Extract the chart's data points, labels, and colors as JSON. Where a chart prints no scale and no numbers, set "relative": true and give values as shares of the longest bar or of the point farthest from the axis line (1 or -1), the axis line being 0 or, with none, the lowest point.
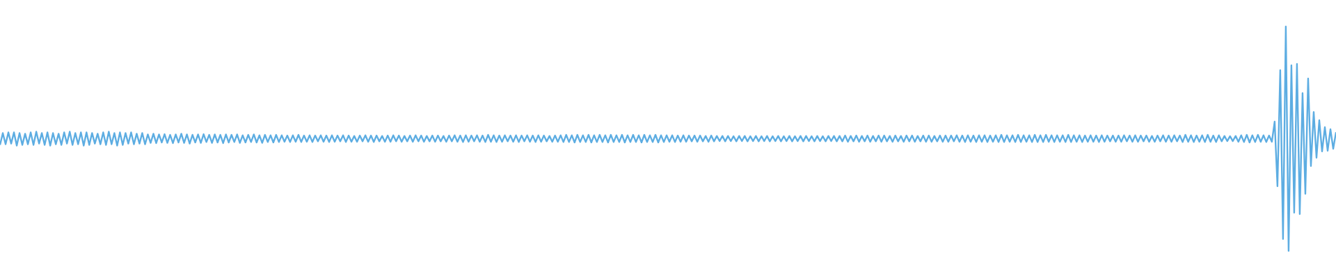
{
  "chart_data": {
    "type": "line",
    "relative": true,
    "color": "#5dade2",
    "categories": [
      null,
      null,
      null,
      null,
      null,
      null,
      null,
      null,
      null,
      null,
      null,
      null,
      null,
      null,
      null,
      null,
      null,
      null,
      null,
      null,
      null,
      null,
      null,
      null,
      null,
      null,
      null,
      null,
      null,
      null,
      null,
      null,
      null,
      null,
      null,
      null,
      null,
      null,
      null,
      null,
      null,
      null,
      null,
      null,
      null,
      null,
      null,
      null,
      null,
      null,
      null,
      null,
      null,
      null,
      null,
      null,
      null,
      null,
      null,
      null,
      null,
      null,
      null,
      null,
      null,
      null,
      null,
      null,
      null,
      null,
      null,
      null,
      null,
      null,
      null,
      null,
      null,
      null,
      null,
      null,
      null,
      null,
      null,
      null,
      null,
      null,
      null,
      null,
      null,
      null,
      null,
      null,
      null,
      null,
      null,
      null,
      null,
      null,
      null,
      null,
      null,
      null,
      null,
      null,
      null,
      null,
      null,
      null,
      null,
      null,
      null,
      null,
      null,
      null,
      null,
      null,
      null,
      null,
      null,
      null,
      null,
      null,
      null,
      null,
      null,
      null,
      null,
      null,
      null,
      null,
      null,
      null,
      null,
      null,
      null,
      null,
      null,
      null,
      null,
      null,
      null,
      null,
      null,
      null,
      null,
      null,
      null,
      null,
      null,
      null,
      null,
      null,
      null,
      null,
      null,
      null,
      null,
      null,
      null,
      null,
      null,
      null,
      null,
      null,
      null,
      null,
      null,
      null,
      null,
      null,
      null,
      null,
      null,
      null,
      null,
      null,
      null,
      null,
      null,
      null,
      null,
      null,
      null,
      null,
      null,
      null,
      null,
      null,
      null,
      null,
      null,
      null,
      null,
      null,
      null,
      null,
      null,
      null,
      null,
      null,
      null,
      null,
      null,
      null,
      null,
      null,
      null,
      null,
      null,
      null,
      null,
      null,
      null,
      null,
      null,
      null,
      null,
      null,
      null,
      null,
      null,
      null,
      null,
      null,
      null,
      null,
      null,
      null,
      null,
      null,
      null,
      null,
      null,
      null,
      null,
      null,
      null,
      null,
      null,
      null,
      null,
      null,
      null,
      null,
      null,
      null,
      null,
      null,
      null,
      null,
      null,
      null,
      null,
      null,
      null,
      null,
      null,
      null,
      null,
      null,
      null,
      null,
      null,
      null,
      null,
      null,
      null,
      null,
      null,
      null,
      null,
      null,
      null,
      null,
      null,
      null,
      null,
      null,
      null,
      null,
      null,
      null,
      null,
      null,
      null,
      null,
      null,
      null,
      null,
      null,
      null,
      null,
      null,
      null,
      null,
      null,
      null,
      null,
      null,
      null,
      null,
      null,
      null,
      null,
      null,
      null,
      null,
      null,
      null,
      null,
      null,
      null,
      null,
      null,
      null,
      null,
      null,
      null,
      null,
      null,
      null,
      null,
      null,
      null,
      null,
      null,
      null,
      null,
      null,
      null,
      null,
      null,
      null,
      null,
      null,
      null,
      null,
      null,
      null,
      null,
      null,
      null,
      null,
      null,
      null,
      null,
      null,
      null,
      null,
      null,
      null,
      null,
      null,
      null,
      null,
      null,
      null,
      null,
      null,
      null,
      null,
      null,
      null,
      null,
      null,
      null,
      null,
      null,
      null,
      null,
      null,
      null,
      null,
      null,
      null,
      null,
      null,
      null,
      null,
      null,
      null,
      null,
      null,
      null,
      null,
      null,
      null,
      null,
      null,
      null,
      null,
      null,
      null,
      null,
      null,
      null,
      null,
      null,
      null,
      null,
      null,
      null,
      null,
      null,
      null,
      null,
      null,
      null,
      null,
      null,
      null,
      null,
      null,
      null,
      null,
      null,
      null,
      null,
      null,
      null,
      null,
      null,
      null,
      null,
      null,
      null,
      null,
      null,
      null,
      null,
      null,
      null,
      null,
      null,
      null,
      null,
      null,
      null,
      null,
      null,
      null,
      null,
      null,
      null,
      null,
      null,
      null,
      null,
      null,
      null,
      null,
      null,
      null,
      null,
      null,
      null,
      null,
      null,
      null,
      null,
      null,
      null,
      null,
      null,
      null,
      null,
      null,
      null,
      null,
      null,
      null,
      null,
      null,
      null,
      null,
      null,
      null,
      null,
      null,
      null
    ],
    "values": [
      0.472,
      0.525,
      0.475,
      0.528,
      0.478,
      0.528,
      0.469,
      0.525,
      0.472,
      0.522,
      0.475,
      0.528,
      0.472,
      0.531,
      0.478,
      0.525,
      0.472,
      0.528,
      0.469,
      0.525,
      0.475,
      0.522,
      0.472,
      0.528,
      0.478,
      0.531,
      0.472,
      0.525,
      0.475,
      0.528,
      0.469,
      0.528,
      0.472,
      0.525,
      0.478,
      0.522,
      0.475,
      0.528,
      0.472,
      0.531,
      0.475,
      0.525,
      0.469,
      0.528,
      0.472,
      0.525,
      0.478,
      0.528,
      0.475,
      0.522,
      0.478,
      0.525,
      0.475,
      0.519,
      0.481,
      0.522,
      0.48,
      0.519,
      0.483,
      0.52,
      0.481,
      0.517,
      0.48,
      0.519,
      0.483,
      0.522,
      0.481,
      0.519,
      0.478,
      0.517,
      0.483,
      0.519,
      0.481,
      0.52,
      0.485,
      0.517,
      0.481,
      0.519,
      0.483,
      0.517,
      0.48,
      0.519,
      0.483,
      0.517,
      0.485,
      0.519,
      0.481,
      0.515,
      0.483,
      0.517,
      0.485,
      0.519,
      0.483,
      0.515,
      0.481,
      0.517,
      0.485,
      0.515,
      0.483,
      0.517,
      0.485,
      0.515,
      0.486,
      0.514,
      0.485,
      0.515,
      0.486,
      0.517,
      0.485,
      0.514,
      0.486,
      0.515,
      0.485,
      0.514,
      0.488,
      0.515,
      0.486,
      0.514,
      0.485,
      0.515,
      0.486,
      0.514,
      0.488,
      0.515,
      0.485,
      0.514,
      0.486,
      0.512,
      0.486,
      0.514,
      0.488,
      0.515,
      0.486,
      0.514,
      0.485,
      0.514,
      0.488,
      0.512,
      0.486,
      0.514,
      0.486,
      0.515,
      0.488,
      0.514,
      0.486,
      0.512,
      0.488,
      0.514,
      0.486,
      0.515,
      0.488,
      0.514,
      0.486,
      0.512,
      0.488,
      0.514,
      0.486,
      0.514,
      0.488,
      0.512,
      0.486,
      0.514,
      0.488,
      0.515,
      0.486,
      0.514,
      0.485,
      0.515,
      0.486,
      0.514,
      0.488,
      0.515,
      0.486,
      0.514,
      0.485,
      0.517,
      0.486,
      0.515,
      0.485,
      0.514,
      0.486,
      0.515,
      0.488,
      0.514,
      0.486,
      0.515,
      0.485,
      0.514,
      0.488,
      0.515,
      0.486,
      0.514,
      0.485,
      0.515,
      0.486,
      0.514,
      0.488,
      0.512,
      0.486,
      0.514,
      0.486,
      0.515,
      0.485,
      0.517,
      0.485,
      0.515,
      0.483,
      0.517,
      0.485,
      0.515,
      0.485,
      0.517,
      0.483,
      0.515,
      0.485,
      0.517,
      0.485,
      0.515,
      0.483,
      0.517,
      0.485,
      0.515,
      0.485,
      0.517,
      0.483,
      0.515,
      0.485,
      0.517,
      0.485,
      0.515,
      0.483,
      0.517,
      0.485,
      0.515,
      0.485,
      0.517,
      0.483,
      0.515,
      0.485,
      0.515,
      0.486,
      0.515,
      0.485,
      0.514,
      0.486,
      0.515,
      0.486,
      0.514,
      0.488,
      0.514,
      0.486,
      0.514,
      0.488,
      0.512,
      0.486,
      0.514,
      0.488,
      0.512,
      0.489,
      0.512,
      0.488,
      0.512,
      0.489,
      0.511,
      0.488,
      0.512,
      0.489,
      0.512,
      0.488,
      0.511,
      0.489,
      0.512,
      0.488,
      0.511,
      0.489,
      0.512,
      0.488,
      0.511,
      0.489,
      0.512,
      0.488,
      0.511,
      0.489,
      0.512,
      0.488,
      0.511,
      0.489,
      0.512,
      0.488,
      0.512,
      0.489,
      0.511,
      0.488,
      0.512,
      0.489,
      0.511,
      0.488,
      0.512,
      0.489,
      0.512,
      0.488,
      0.512,
      0.488,
      0.514,
      0.486,
      0.512,
      0.488,
      0.514,
      0.486,
      0.512,
      0.488,
      0.514,
      0.486,
      0.512,
      0.488,
      0.514,
      0.486,
      0.514,
      0.488,
      0.512,
      0.486,
      0.514,
      0.488,
      0.512,
      0.486,
      0.514,
      0.488,
      0.514,
      0.486,
      0.512,
      0.488,
      0.514,
      0.486,
      0.514,
      0.486,
      0.512,
      0.488,
      0.514,
      0.486,
      0.514,
      0.486,
      0.514,
      0.488,
      0.515,
      0.486,
      0.514,
      0.485,
      0.515,
      0.486,
      0.514,
      0.485,
      0.515,
      0.486,
      0.515,
      0.485,
      0.514,
      0.486,
      0.515,
      0.485,
      0.517,
      0.485,
      0.515,
      0.486,
      0.515,
      0.485,
      0.517,
      0.485,
      0.515,
      0.486,
      0.515,
      0.485,
      0.517,
      0.485,
      0.515,
      0.485,
      0.517,
      0.486,
      0.515,
      0.485,
      0.515,
      0.486,
      0.515,
      0.485,
      0.517,
      0.485,
      0.515,
      0.486,
      0.515,
      0.485,
      0.514,
      0.486,
      0.515,
      0.486,
      0.514,
      0.485,
      0.515,
      0.486,
      0.514,
      0.488,
      0.514,
      0.486,
      0.514,
      0.486,
      0.515,
      0.488,
      0.514,
      0.486,
      0.515,
      0.486,
      0.514,
      0.488,
      0.514,
      0.486,
      0.512,
      0.486,
      0.514,
      0.488,
      0.515,
      0.486,
      0.514,
      0.486,
      0.515,
      0.488,
      0.514,
      0.485,
      0.517,
      0.486,
      0.515,
      0.485,
      0.514,
      0.486,
      0.515,
      0.485,
      0.517,
      0.486,
      0.514,
      0.485,
      0.515,
      0.488,
      0.512,
      0.489,
      0.511,
      0.489,
      0.512,
      0.486,
      0.515,
      0.485,
      0.517,
      0.483,
      0.515,
      0.485,
      0.517,
      0.486,
      0.515,
      0.485,
      0.514,
      0.486,
      0.576,
      0.288,
      0.805,
      0.053,
      1,
      0,
      0.827,
      0.17,
      0.833,
      0.164,
      0.703,
      0.254,
      0.768,
      0.378,
      0.619,
      0.415,
      0.582,
      0.443,
      0.551,
      0.446,
      0.542,
      0.455,
      0.529
    ]
  }
}
